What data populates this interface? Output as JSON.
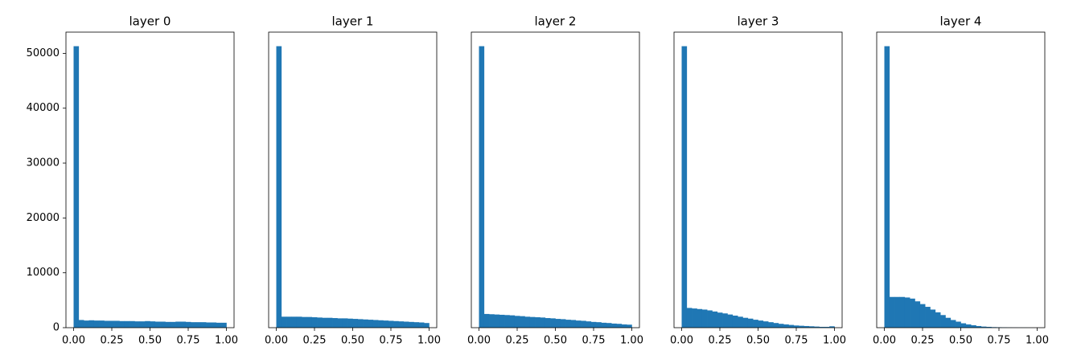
{
  "chart_data": [
    {
      "type": "histogram",
      "title": "layer 0",
      "color": "#1f77b4",
      "bins": [
        0,
        0.0333,
        0.0667,
        0.1,
        0.1333,
        0.1667,
        0.2,
        0.2333,
        0.2667,
        0.3,
        0.3333,
        0.3667,
        0.4,
        0.4333,
        0.4667,
        0.5,
        0.5333,
        0.5667,
        0.6,
        0.6333,
        0.6667,
        0.7,
        0.7333,
        0.7667,
        0.8,
        0.8333,
        0.8667,
        0.9,
        0.9333,
        0.9667,
        1
      ],
      "values": [
        51300,
        1400,
        1300,
        1350,
        1300,
        1300,
        1250,
        1250,
        1250,
        1200,
        1200,
        1200,
        1150,
        1150,
        1200,
        1150,
        1100,
        1100,
        1050,
        1050,
        1100,
        1100,
        1050,
        1000,
        1000,
        1000,
        950,
        950,
        900,
        900
      ],
      "xlim": [
        -0.05,
        1.05
      ],
      "ylim": [
        0,
        53865
      ],
      "xticks": [
        {
          "value": 0,
          "label": "0.00"
        },
        {
          "value": 0.25,
          "label": "0.25"
        },
        {
          "value": 0.5,
          "label": "0.50"
        },
        {
          "value": 0.75,
          "label": "0.75"
        },
        {
          "value": 1,
          "label": "1.00"
        }
      ],
      "yticks": [
        0,
        10000,
        20000,
        30000,
        40000,
        50000
      ]
    },
    {
      "type": "histogram",
      "title": "layer 1",
      "color": "#1f77b4",
      "bins": [
        0,
        0.0333,
        0.0667,
        0.1,
        0.1333,
        0.1667,
        0.2,
        0.2333,
        0.2667,
        0.3,
        0.3333,
        0.3667,
        0.4,
        0.4333,
        0.4667,
        0.5,
        0.5333,
        0.5667,
        0.6,
        0.6333,
        0.6667,
        0.7,
        0.7333,
        0.7667,
        0.8,
        0.8333,
        0.8667,
        0.9,
        0.9333,
        0.9667,
        1
      ],
      "values": [
        51300,
        2000,
        2000,
        2000,
        2000,
        1950,
        1950,
        1900,
        1850,
        1800,
        1800,
        1750,
        1700,
        1700,
        1650,
        1600,
        1550,
        1500,
        1450,
        1400,
        1350,
        1300,
        1250,
        1200,
        1150,
        1100,
        1050,
        1000,
        950,
        850
      ],
      "xlim": [
        -0.05,
        1.05
      ],
      "ylim": [
        0,
        53865
      ],
      "xticks": [
        {
          "value": 0,
          "label": "0.00"
        },
        {
          "value": 0.25,
          "label": "0.25"
        },
        {
          "value": 0.5,
          "label": "0.50"
        },
        {
          "value": 0.75,
          "label": "0.75"
        },
        {
          "value": 1,
          "label": "1.00"
        }
      ]
    },
    {
      "type": "histogram",
      "title": "layer 2",
      "color": "#1f77b4",
      "bins": [
        0,
        0.0333,
        0.0667,
        0.1,
        0.1333,
        0.1667,
        0.2,
        0.2333,
        0.2667,
        0.3,
        0.3333,
        0.3667,
        0.4,
        0.4333,
        0.4667,
        0.5,
        0.5333,
        0.5667,
        0.6,
        0.6333,
        0.6667,
        0.7,
        0.7333,
        0.7667,
        0.8,
        0.8333,
        0.8667,
        0.9,
        0.9333,
        0.9667,
        1
      ],
      "values": [
        51300,
        2500,
        2450,
        2400,
        2350,
        2300,
        2250,
        2150,
        2100,
        2000,
        1950,
        1900,
        1850,
        1750,
        1700,
        1600,
        1550,
        1450,
        1400,
        1300,
        1250,
        1150,
        1050,
        1000,
        900,
        850,
        750,
        700,
        600,
        550
      ],
      "xlim": [
        -0.05,
        1.05
      ],
      "ylim": [
        0,
        53865
      ],
      "xticks": [
        {
          "value": 0,
          "label": "0.00"
        },
        {
          "value": 0.25,
          "label": "0.25"
        },
        {
          "value": 0.5,
          "label": "0.50"
        },
        {
          "value": 0.75,
          "label": "0.75"
        },
        {
          "value": 1,
          "label": "1.00"
        }
      ]
    },
    {
      "type": "histogram",
      "title": "layer 3",
      "color": "#1f77b4",
      "bins": [
        0,
        0.0333,
        0.0667,
        0.1,
        0.1333,
        0.1667,
        0.2,
        0.2333,
        0.2667,
        0.3,
        0.3333,
        0.3667,
        0.4,
        0.4333,
        0.4667,
        0.5,
        0.5333,
        0.5667,
        0.6,
        0.6333,
        0.6667,
        0.7,
        0.7333,
        0.7667,
        0.8,
        0.8333,
        0.8667,
        0.9,
        0.9333,
        0.9667,
        1
      ],
      "values": [
        51300,
        3600,
        3500,
        3400,
        3300,
        3150,
        2950,
        2750,
        2600,
        2400,
        2200,
        2000,
        1800,
        1650,
        1450,
        1300,
        1150,
        1000,
        850,
        700,
        600,
        500,
        400,
        350,
        300,
        250,
        200,
        150,
        150,
        250
      ],
      "xlim": [
        -0.05,
        1.05
      ],
      "ylim": [
        0,
        53865
      ],
      "xticks": [
        {
          "value": 0,
          "label": "0.00"
        },
        {
          "value": 0.25,
          "label": "0.25"
        },
        {
          "value": 0.5,
          "label": "0.50"
        },
        {
          "value": 0.75,
          "label": "0.75"
        },
        {
          "value": 1,
          "label": "1.00"
        }
      ]
    },
    {
      "type": "histogram",
      "title": "layer 4",
      "color": "#1f77b4",
      "bins": [
        0,
        0.0333,
        0.0667,
        0.1,
        0.1333,
        0.1667,
        0.2,
        0.2333,
        0.2667,
        0.3,
        0.3333,
        0.3667,
        0.4,
        0.4333,
        0.4667,
        0.5,
        0.5333,
        0.5667,
        0.6,
        0.6333,
        0.6667,
        0.7,
        0.7333,
        0.7667,
        0.8,
        0.8333,
        0.8667,
        0.9,
        0.9333,
        0.9667,
        1
      ],
      "values": [
        51300,
        5600,
        5600,
        5600,
        5500,
        5300,
        4800,
        4300,
        3800,
        3300,
        2800,
        2300,
        1800,
        1400,
        1100,
        800,
        600,
        450,
        300,
        200,
        150,
        100,
        80,
        60,
        40,
        30,
        20,
        15,
        10,
        5
      ],
      "xlim": [
        -0.05,
        1.05
      ],
      "ylim": [
        0,
        53865
      ],
      "xticks": [
        {
          "value": 0,
          "label": "0.00"
        },
        {
          "value": 0.25,
          "label": "0.25"
        },
        {
          "value": 0.5,
          "label": "0.50"
        },
        {
          "value": 0.75,
          "label": "0.75"
        },
        {
          "value": 1,
          "label": "1.00"
        }
      ]
    }
  ]
}
